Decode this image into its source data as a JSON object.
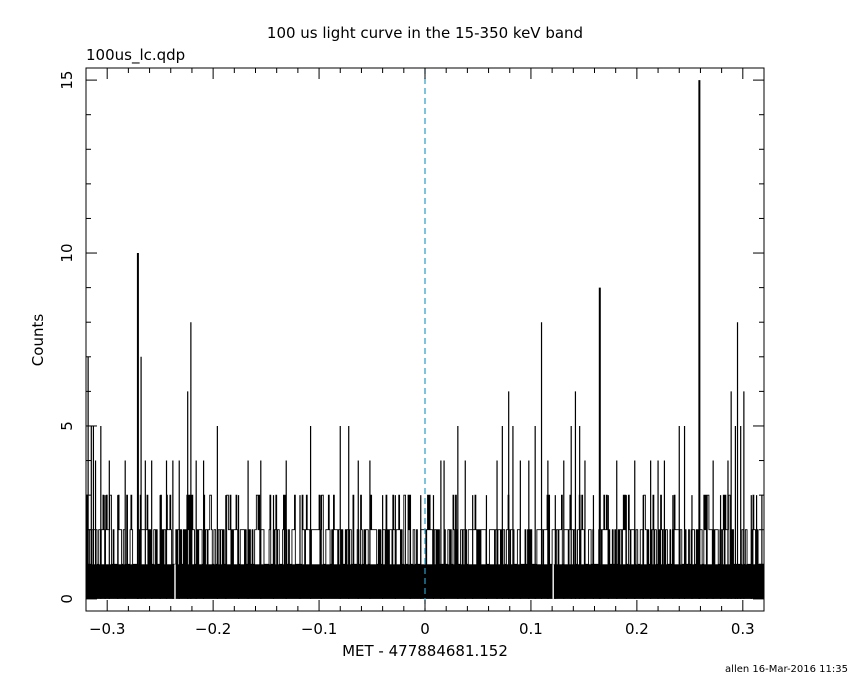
{
  "chart_data": {
    "type": "bar",
    "title": "100 us light curve in the 15-350 keV band",
    "file_label": "100us_lc.qdp",
    "xlabel": "MET - 477884681.152",
    "ylabel": "Counts",
    "footer": "allen 16-Mar-2016 11:35",
    "xlim": [
      -0.32,
      0.32
    ],
    "ylim": [
      -0.35,
      15.35
    ],
    "x_ticks": [
      -0.3,
      -0.2,
      -0.1,
      0,
      0.1,
      0.2,
      0.3
    ],
    "x_tick_labels": [
      "−0.3",
      "−0.2",
      "−0.1",
      "0",
      "0.1",
      "0.2",
      "0.3"
    ],
    "y_ticks": [
      0,
      5,
      10,
      15
    ],
    "y_tick_labels": [
      "0",
      "5",
      "10",
      "15"
    ],
    "bin_width": 0.0001,
    "baseline_counts": 1,
    "reference_line_x": 0,
    "peak_bins": [
      {
        "x": -0.318,
        "y": 7
      },
      {
        "x": -0.315,
        "y": 5
      },
      {
        "x": -0.313,
        "y": 5
      },
      {
        "x": -0.311,
        "y": 4
      },
      {
        "x": -0.306,
        "y": 5
      },
      {
        "x": -0.302,
        "y": 3
      },
      {
        "x": -0.298,
        "y": 4
      },
      {
        "x": -0.29,
        "y": 3
      },
      {
        "x": -0.283,
        "y": 4
      },
      {
        "x": -0.271,
        "y": 10
      },
      {
        "x": -0.268,
        "y": 7
      },
      {
        "x": -0.264,
        "y": 4
      },
      {
        "x": -0.258,
        "y": 4
      },
      {
        "x": -0.25,
        "y": 3
      },
      {
        "x": -0.244,
        "y": 4
      },
      {
        "x": -0.238,
        "y": 4
      },
      {
        "x": -0.232,
        "y": 4
      },
      {
        "x": -0.224,
        "y": 6
      },
      {
        "x": -0.221,
        "y": 8
      },
      {
        "x": -0.216,
        "y": 4
      },
      {
        "x": -0.209,
        "y": 4
      },
      {
        "x": -0.196,
        "y": 5
      },
      {
        "x": -0.188,
        "y": 3
      },
      {
        "x": -0.176,
        "y": 3
      },
      {
        "x": -0.167,
        "y": 4
      },
      {
        "x": -0.155,
        "y": 4
      },
      {
        "x": -0.143,
        "y": 3
      },
      {
        "x": -0.131,
        "y": 4
      },
      {
        "x": -0.118,
        "y": 3
      },
      {
        "x": -0.108,
        "y": 5
      },
      {
        "x": -0.098,
        "y": 3
      },
      {
        "x": -0.08,
        "y": 5
      },
      {
        "x": -0.072,
        "y": 5
      },
      {
        "x": -0.063,
        "y": 4
      },
      {
        "x": -0.052,
        "y": 4
      },
      {
        "x": -0.04,
        "y": 3
      },
      {
        "x": -0.028,
        "y": 3
      },
      {
        "x": -0.014,
        "y": 3
      },
      {
        "x": -0.004,
        "y": 3
      },
      {
        "x": 0.008,
        "y": 3
      },
      {
        "x": 0.015,
        "y": 4
      },
      {
        "x": 0.018,
        "y": 4
      },
      {
        "x": 0.031,
        "y": 5
      },
      {
        "x": 0.038,
        "y": 4
      },
      {
        "x": 0.045,
        "y": 3
      },
      {
        "x": 0.058,
        "y": 3
      },
      {
        "x": 0.068,
        "y": 4
      },
      {
        "x": 0.073,
        "y": 5
      },
      {
        "x": 0.079,
        "y": 6
      },
      {
        "x": 0.083,
        "y": 5
      },
      {
        "x": 0.09,
        "y": 4
      },
      {
        "x": 0.098,
        "y": 4
      },
      {
        "x": 0.104,
        "y": 5
      },
      {
        "x": 0.11,
        "y": 8
      },
      {
        "x": 0.116,
        "y": 4
      },
      {
        "x": 0.123,
        "y": 3
      },
      {
        "x": 0.131,
        "y": 4
      },
      {
        "x": 0.138,
        "y": 5
      },
      {
        "x": 0.142,
        "y": 6
      },
      {
        "x": 0.146,
        "y": 5
      },
      {
        "x": 0.151,
        "y": 4
      },
      {
        "x": 0.159,
        "y": 3
      },
      {
        "x": 0.165,
        "y": 9
      },
      {
        "x": 0.173,
        "y": 3
      },
      {
        "x": 0.181,
        "y": 4
      },
      {
        "x": 0.19,
        "y": 3
      },
      {
        "x": 0.198,
        "y": 4
      },
      {
        "x": 0.206,
        "y": 3
      },
      {
        "x": 0.213,
        "y": 4
      },
      {
        "x": 0.22,
        "y": 4
      },
      {
        "x": 0.226,
        "y": 4
      },
      {
        "x": 0.234,
        "y": 3
      },
      {
        "x": 0.24,
        "y": 5
      },
      {
        "x": 0.245,
        "y": 5
      },
      {
        "x": 0.252,
        "y": 3
      },
      {
        "x": 0.259,
        "y": 15
      },
      {
        "x": 0.266,
        "y": 3
      },
      {
        "x": 0.272,
        "y": 4
      },
      {
        "x": 0.279,
        "y": 3
      },
      {
        "x": 0.286,
        "y": 4
      },
      {
        "x": 0.289,
        "y": 6
      },
      {
        "x": 0.293,
        "y": 5
      },
      {
        "x": 0.295,
        "y": 8
      },
      {
        "x": 0.298,
        "y": 5
      },
      {
        "x": 0.301,
        "y": 6
      },
      {
        "x": 0.308,
        "y": 3
      },
      {
        "x": 0.313,
        "y": 3
      },
      {
        "x": 0.318,
        "y": 3
      }
    ],
    "zero_bins": [
      -0.236,
      0.121
    ]
  }
}
